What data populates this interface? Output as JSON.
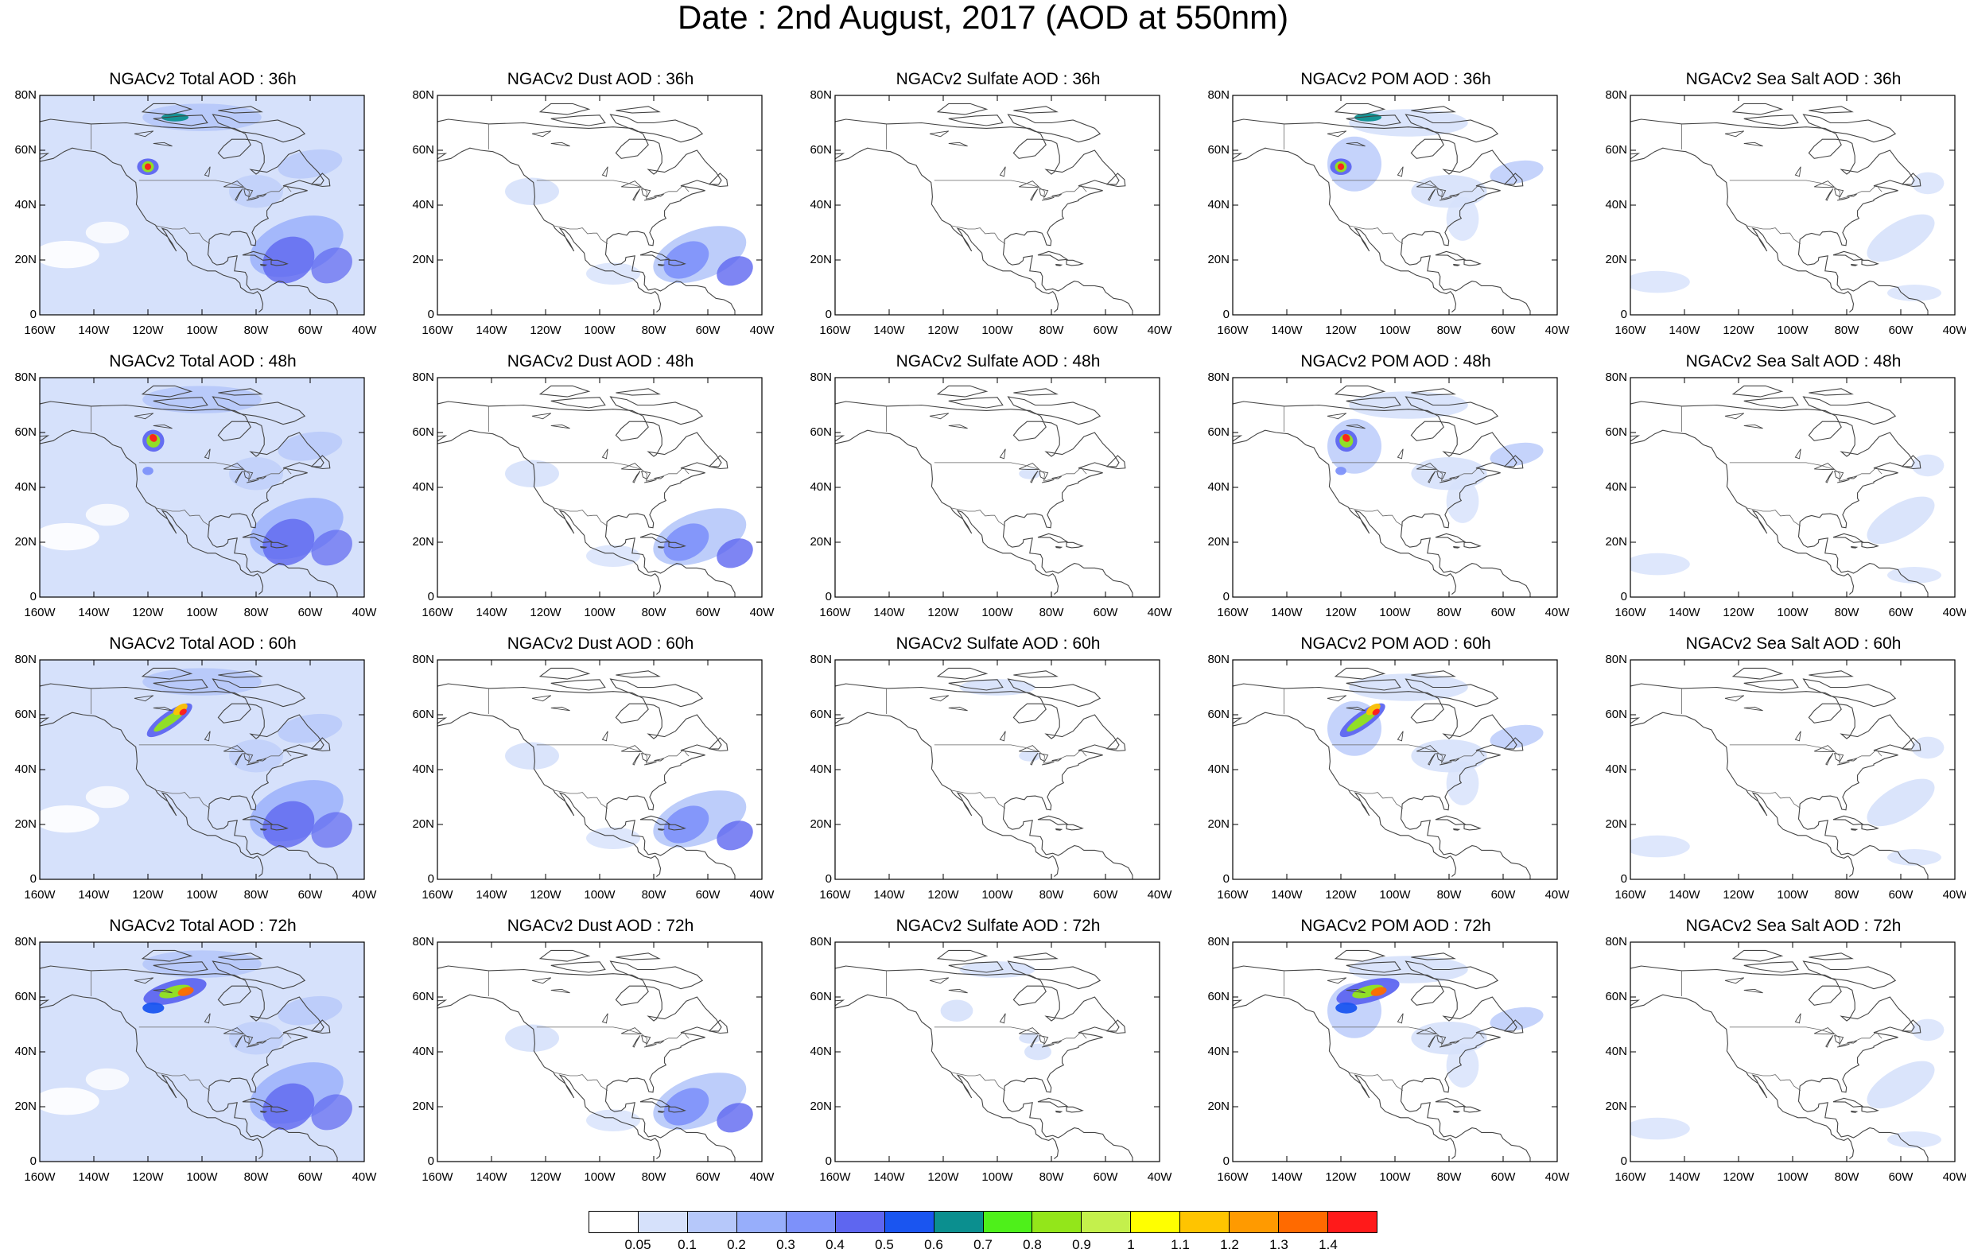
{
  "title": "Date : 2nd August, 2017 (AOD at 550nm)",
  "axes": {
    "lon_ticks": [
      "160W",
      "140W",
      "120W",
      "100W",
      "80W",
      "60W",
      "40W"
    ],
    "lat_ticks": [
      "0",
      "20N",
      "40N",
      "60N",
      "80N"
    ]
  },
  "rows": [
    {
      "hour": "36h",
      "titles": [
        "NGACv2 Total AOD : 36h",
        "NGACv2 Dust AOD : 36h",
        "NGACv2 Sulfate AOD : 36h",
        "NGACv2 POM AOD : 36h",
        "NGACv2 Sea Salt AOD : 36h"
      ]
    },
    {
      "hour": "48h",
      "titles": [
        "NGACv2 Total AOD : 48h",
        "NGACv2 Dust AOD : 48h",
        "NGACv2 Sulfate AOD : 48h",
        "NGACv2 POM AOD : 48h",
        "NGACv2 Sea Salt AOD : 48h"
      ]
    },
    {
      "hour": "60h",
      "titles": [
        "NGACv2 Total AOD : 60h",
        "NGACv2 Dust AOD : 60h",
        "NGACv2 Sulfate AOD : 60h",
        "NGACv2 POM AOD : 60h",
        "NGACv2 Sea Salt AOD : 60h"
      ]
    },
    {
      "hour": "72h",
      "titles": [
        "NGACv2 Total AOD : 72h",
        "NGACv2 Dust AOD : 72h",
        "NGACv2 Sulfate AOD : 72h",
        "NGACv2 POM AOD : 72h",
        "NGACv2 Sea Salt  AOD : 72h"
      ]
    }
  ],
  "colorbar": {
    "labels": [
      "0.05",
      "0.1",
      "0.2",
      "0.3",
      "0.4",
      "0.5",
      "0.6",
      "0.7",
      "0.8",
      "0.9",
      "1",
      "1.1",
      "1.2",
      "1.3",
      "1.4"
    ],
    "colors": [
      "#ffffff",
      "#d6e1fb",
      "#b6c8fa",
      "#97aefb",
      "#7d91fa",
      "#5e66f0",
      "#1a55f0",
      "#0b8f8f",
      "#4ef01a",
      "#93e61a",
      "#c4f04c",
      "#ffff00",
      "#ffc400",
      "#ff9a00",
      "#ff6a00",
      "#ff1a1a"
    ]
  }
}
